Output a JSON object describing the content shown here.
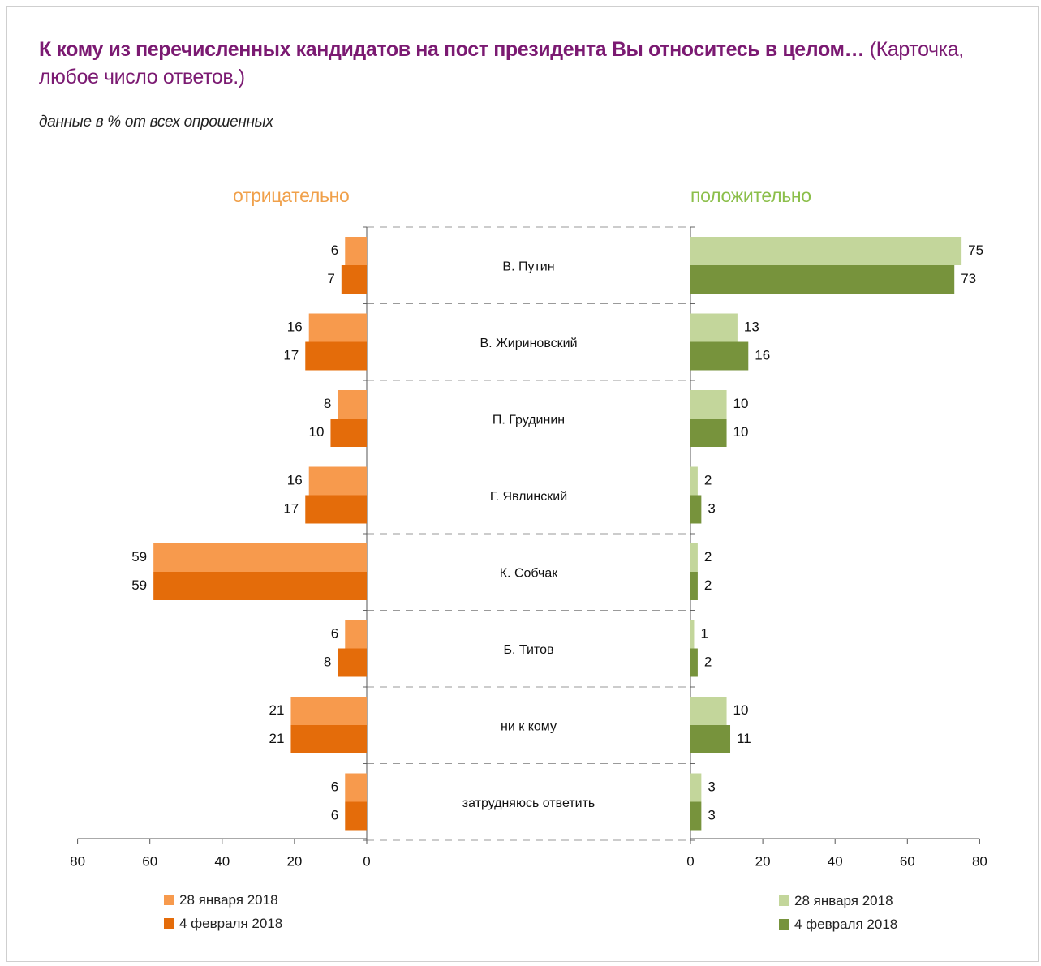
{
  "title": {
    "bold": "К кому из перечисленных кандидатов на пост президента Вы относитесь в целом…",
    "rest": " (Карточка, любое число ответов.)"
  },
  "subtitle": "данные в % от всех опрошенных",
  "colors": {
    "neg_light": "#f79a4d",
    "neg_dark": "#e46c0a",
    "pos_light": "#c3d69b",
    "pos_dark": "#77933c"
  },
  "chart_data": [
    {
      "type": "bar",
      "title": "отрицательно",
      "categories": [
        "В. Путин",
        "В. Жириновский",
        "П. Грудинин",
        "Г. Явлинский",
        "К. Собчак",
        "Б. Титов",
        "ни к кому",
        "затрудняюсь ответить"
      ],
      "series": [
        {
          "name": "28 января 2018",
          "values": [
            6,
            16,
            8,
            16,
            59,
            6,
            21,
            6
          ]
        },
        {
          "name": "4 февраля 2018",
          "values": [
            7,
            17,
            10,
            17,
            59,
            8,
            21,
            6
          ]
        }
      ],
      "xlim": [
        0,
        80
      ],
      "ticks": [
        "80",
        "60",
        "40",
        "20",
        "0"
      ],
      "orientation": "horizontal, reversed",
      "legend_position": "bottom"
    },
    {
      "type": "bar",
      "title": "положительно",
      "categories": [
        "В. Путин",
        "В. Жириновский",
        "П. Грудинин",
        "Г. Явлинский",
        "К. Собчак",
        "Б. Титов",
        "ни к кому",
        "затрудняюсь ответить"
      ],
      "series": [
        {
          "name": "28 января 2018",
          "values": [
            75,
            13,
            10,
            2,
            2,
            1,
            10,
            3
          ]
        },
        {
          "name": "4 февраля 2018",
          "values": [
            73,
            16,
            10,
            3,
            2,
            2,
            11,
            3
          ]
        }
      ],
      "xlim": [
        0,
        80
      ],
      "ticks": [
        "0",
        "20",
        "40",
        "60",
        "80"
      ],
      "orientation": "horizontal",
      "legend_position": "bottom"
    }
  ]
}
